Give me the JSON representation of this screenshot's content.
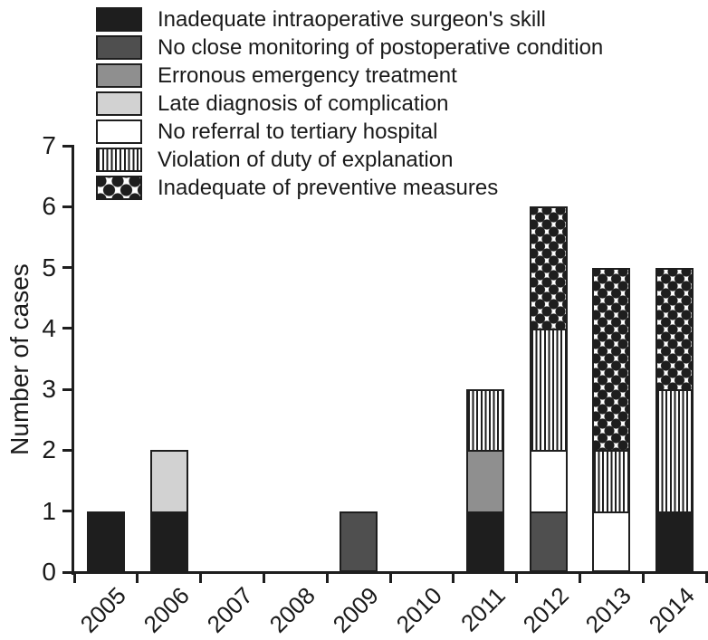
{
  "colors": {
    "ink": "#1a1a1a",
    "black": "#1e1e1e",
    "darkgray": "#4f4f4f",
    "midgray": "#8f8f8f",
    "lightgray": "#d2d2d2",
    "white": "#ffffff"
  },
  "chart_data": {
    "type": "bar",
    "stacked": true,
    "title": "",
    "xlabel": "",
    "ylabel": "Number of cases",
    "ylim": [
      0,
      7
    ],
    "yticks": [
      0,
      1,
      2,
      3,
      4,
      5,
      6,
      7
    ],
    "grid": false,
    "legend_position": "top-left",
    "categories": [
      "2005",
      "2006",
      "2007",
      "2008",
      "2009",
      "2010",
      "2011",
      "2012",
      "2013",
      "2014"
    ],
    "series": [
      {
        "name": "Inadequate intraoperative surgeon's skill",
        "style": "black",
        "values": [
          1,
          1,
          0,
          0,
          0,
          0,
          1,
          0,
          0,
          1
        ]
      },
      {
        "name": "No close monitoring of postoperative condition",
        "style": "darkgray",
        "values": [
          0,
          0,
          0,
          0,
          1,
          0,
          0,
          1,
          0,
          0
        ]
      },
      {
        "name": "Erronous emergency treatment",
        "style": "midgray",
        "values": [
          0,
          0,
          0,
          0,
          0,
          0,
          1,
          0,
          0,
          0
        ]
      },
      {
        "name": "Late diagnosis of complication",
        "style": "lightgray",
        "values": [
          0,
          1,
          0,
          0,
          0,
          0,
          0,
          0,
          0,
          0
        ]
      },
      {
        "name": "No referral to tertiary hospital",
        "style": "white",
        "values": [
          0,
          0,
          0,
          0,
          0,
          0,
          0,
          1,
          1,
          0
        ]
      },
      {
        "name": "Violation of duty of explanation",
        "style": "stripes",
        "values": [
          0,
          0,
          0,
          0,
          0,
          0,
          1,
          2,
          1,
          2
        ]
      },
      {
        "name": "Inadequate of preventive measures",
        "style": "dots",
        "values": [
          0,
          0,
          0,
          0,
          0,
          0,
          0,
          2,
          3,
          2
        ]
      }
    ]
  }
}
